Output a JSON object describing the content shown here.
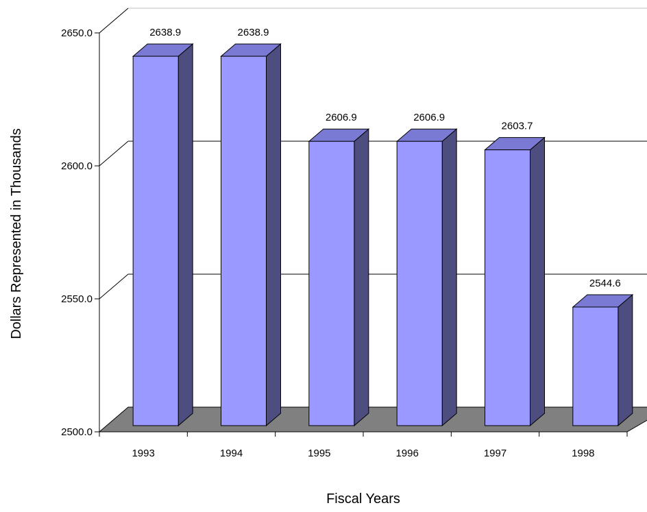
{
  "chart_data": {
    "type": "bar",
    "categories": [
      "1993",
      "1994",
      "1995",
      "1996",
      "1997",
      "1998"
    ],
    "values": [
      2638.9,
      2638.9,
      2606.9,
      2606.9,
      2603.7,
      2544.6
    ],
    "data_labels": [
      "2638.9",
      "2638.9",
      "2606.9",
      "2606.9",
      "2603.7",
      "2544.6"
    ],
    "title": "",
    "xlabel": "Fiscal Years",
    "ylabel": "Dollars Represented in Thousands",
    "ylim": [
      2500.0,
      2650.0
    ],
    "yticks": [
      "2500.0",
      "2550.0",
      "2600.0",
      "2650.0"
    ],
    "grid": true,
    "legend": "none",
    "style": "3d-column",
    "colors": {
      "bar_front": "#9999ff",
      "bar_top": "#7a7ad4",
      "bar_side": "#4d4d80",
      "floor": "#808080",
      "gridline": "#000000"
    }
  }
}
